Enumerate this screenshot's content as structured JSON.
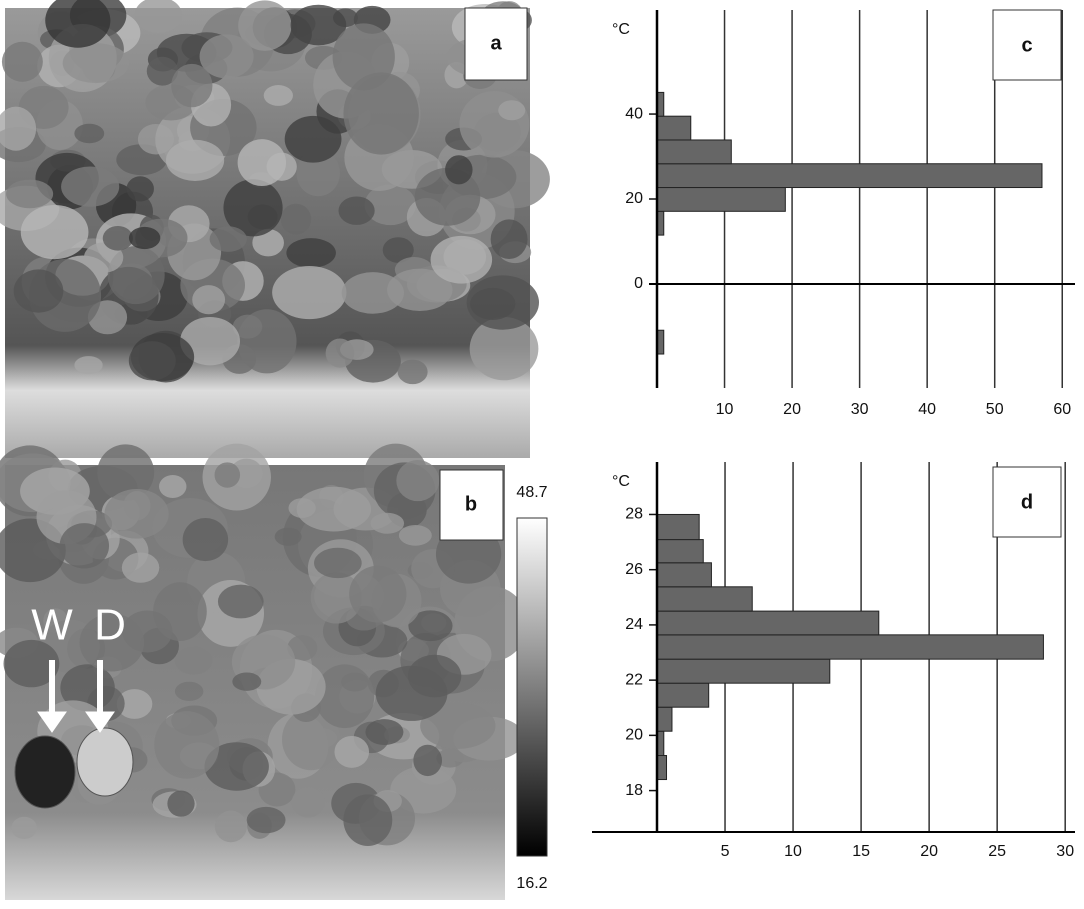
{
  "photo_a": {
    "label": "a"
  },
  "photo_b": {
    "label": "b",
    "markers": [
      "W",
      "D"
    ],
    "colorbar": {
      "max": "48.7",
      "min": "16.2"
    }
  },
  "chart_data": [
    {
      "type": "histogram",
      "orientation": "horizontal",
      "panel_label": "c",
      "ylabel": "°C",
      "bins": [
        -16.5,
        -10.9,
        -5.3,
        0.3,
        5.9,
        11.5,
        17.1,
        22.7,
        28.3,
        33.9,
        39.5,
        45.1
      ],
      "values": [
        1,
        0,
        0,
        0,
        0,
        1,
        19,
        57,
        11,
        5,
        1
      ],
      "color": "#666666",
      "xlim": [
        0,
        61
      ],
      "xticks": [
        10,
        20,
        30,
        40,
        50,
        60
      ],
      "ylim": [
        -24.5,
        64.5
      ],
      "yticks": [
        0,
        20,
        40
      ],
      "grid": true
    },
    {
      "type": "histogram",
      "orientation": "horizontal",
      "panel_label": "d",
      "ylabel": "°C",
      "bins": [
        18.4,
        19.27,
        20.15,
        21.02,
        21.89,
        22.76,
        23.64,
        24.5,
        25.38,
        26.25,
        27.09,
        28.0
      ],
      "values": [
        0.7,
        0.5,
        1.1,
        3.8,
        12.7,
        28.4,
        16.3,
        7,
        4,
        3.4,
        3.1
      ],
      "color": "#666666",
      "xlim": [
        0,
        30.5
      ],
      "xticks": [
        5,
        10,
        15,
        20,
        25,
        30
      ],
      "ylim": [
        16.5,
        29.9
      ],
      "yticks": [
        18,
        20,
        22,
        24,
        26,
        28
      ],
      "grid": true
    }
  ]
}
